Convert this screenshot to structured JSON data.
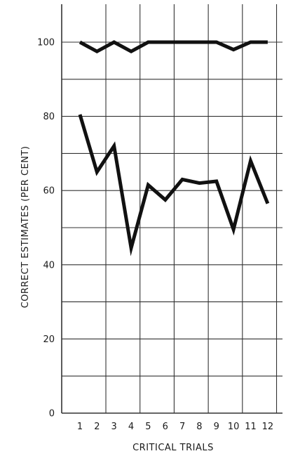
{
  "chart_data": {
    "type": "line",
    "title": "",
    "xlabel": "CRITICAL TRIALS",
    "ylabel": "CORRECT ESTIMATES (PER CENT)",
    "x": [
      1,
      2,
      3,
      4,
      5,
      6,
      7,
      8,
      9,
      10,
      11,
      12
    ],
    "x_tick_labels": [
      "1",
      "2",
      "3",
      "4",
      "5",
      "6",
      "7",
      "8",
      "9",
      "10",
      "11",
      "12"
    ],
    "ylim": [
      0,
      110
    ],
    "y_ticks": [
      0,
      20,
      40,
      60,
      80,
      100
    ],
    "y_tick_labels": [
      "0",
      "20",
      "40",
      "60",
      "80",
      "100"
    ],
    "grid": true,
    "legend": "none",
    "line_color": "#111111",
    "grid_color": "#333333",
    "series": [
      {
        "values": [
          100,
          97.5,
          100,
          97.5,
          100,
          100,
          100,
          100,
          100,
          98,
          100,
          100
        ]
      },
      {
        "values": [
          80.5,
          65,
          72,
          44.5,
          61.5,
          57.5,
          63,
          62,
          62.5,
          49.5,
          68,
          56.5
        ]
      }
    ]
  }
}
